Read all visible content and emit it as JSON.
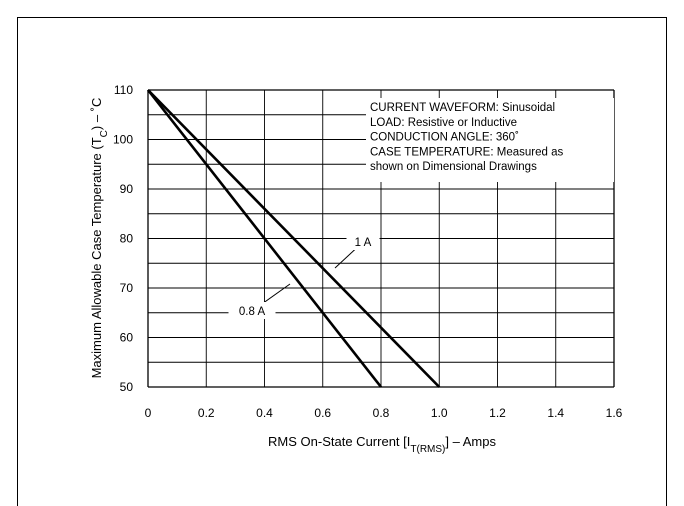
{
  "chart_data": {
    "type": "line",
    "xlabel_parts": [
      "RMS On-State Current [I",
      "T(RMS)",
      "] – Amps"
    ],
    "ylabel_parts": [
      "Maximum Allowable Case Temperature (T",
      "C",
      ") – ˚C"
    ],
    "xlim": [
      0,
      1.6
    ],
    "ylim": [
      50,
      110
    ],
    "xticks": [
      0,
      0.2,
      0.4,
      0.6,
      0.8,
      1.0,
      1.2,
      1.4,
      1.6
    ],
    "xtick_labels": [
      "0",
      "0.2",
      "0.4",
      "0.6",
      "0.8",
      "1.0",
      "1.2",
      "1.4",
      "1.6"
    ],
    "yticks": [
      50,
      60,
      70,
      80,
      90,
      100,
      110
    ],
    "ytick_labels": [
      "50",
      "60",
      "70",
      "80",
      "90",
      "100",
      "110"
    ],
    "grid": true,
    "series": [
      {
        "name": "1 A",
        "x": [
          0,
          1.0
        ],
        "y": [
          110,
          50
        ]
      },
      {
        "name": "0.8 A",
        "x": [
          0,
          0.8
        ],
        "y": [
          110,
          50
        ]
      }
    ],
    "notes": [
      "CURRENT WAVEFORM: Sinusoidal",
      "LOAD: Resistive or Inductive",
      "CONDUCTION ANGLE: 360˚",
      "CASE TEMPERATURE: Measured as",
      "shown on Dimensional Drawings"
    ]
  }
}
